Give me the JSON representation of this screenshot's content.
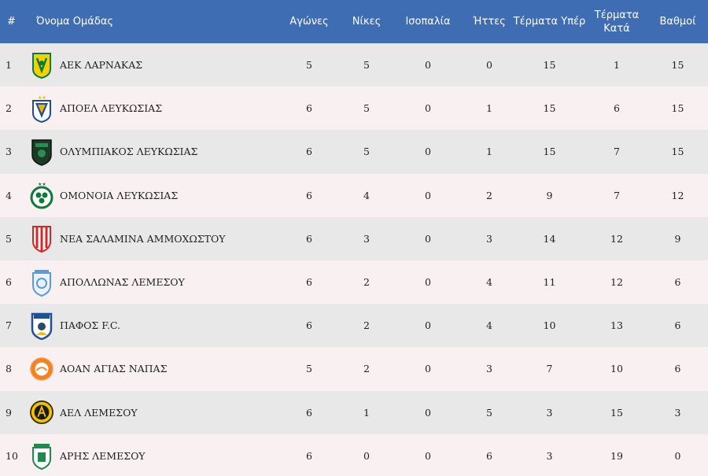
{
  "table": {
    "headers": {
      "rank": "#",
      "team": "Όνομα Ομάδας",
      "played": "Αγώνες",
      "wins": "Νίκες",
      "draws": "Ισοπαλία",
      "losses": "Ήττες",
      "goals_for": "Τέρματα Υπέρ",
      "goals_against": "Τέρματα Κατά",
      "points": "Βαθμοί"
    },
    "rows": [
      {
        "rank": "1",
        "team": "ΑΕΚ ΛΑΡΝΑΚΑΣ",
        "played": "5",
        "wins": "5",
        "draws": "0",
        "losses": "0",
        "goals_for": "15",
        "goals_against": "1",
        "points": "15",
        "logo": "aek-larnaca-logo-icon"
      },
      {
        "rank": "2",
        "team": "ΑΠΟΕΛ ΛΕΥΚΩΣΙΑΣ",
        "played": "6",
        "wins": "5",
        "draws": "0",
        "losses": "1",
        "goals_for": "15",
        "goals_against": "6",
        "points": "15",
        "logo": "apoel-logo-icon"
      },
      {
        "rank": "3",
        "team": "ΟΛΥΜΠΙΑΚΟΣ ΛΕΥΚΩΣΙΑΣ",
        "played": "6",
        "wins": "5",
        "draws": "0",
        "losses": "1",
        "goals_for": "15",
        "goals_against": "7",
        "points": "15",
        "logo": "olympiakos-nicosia-logo-icon"
      },
      {
        "rank": "4",
        "team": "ΟΜΟΝΟΙΑ ΛΕΥΚΩΣΙΑΣ",
        "played": "6",
        "wins": "4",
        "draws": "0",
        "losses": "2",
        "goals_for": "9",
        "goals_against": "7",
        "points": "12",
        "logo": "omonia-logo-icon"
      },
      {
        "rank": "5",
        "team": "ΝΕΑ ΣΑΛΑΜΙΝΑ ΑΜΜΟΧΩΣΤΟΥ",
        "played": "6",
        "wins": "3",
        "draws": "0",
        "losses": "3",
        "goals_for": "14",
        "goals_against": "12",
        "points": "9",
        "logo": "nea-salamis-logo-icon"
      },
      {
        "rank": "6",
        "team": "ΑΠΟΛΛΩΝΑΣ ΛΕΜΕΣΟΥ",
        "played": "6",
        "wins": "2",
        "draws": "0",
        "losses": "4",
        "goals_for": "11",
        "goals_against": "12",
        "points": "6",
        "logo": "apollon-logo-icon"
      },
      {
        "rank": "7",
        "team": "ΠΑΦΟΣ F.C.",
        "played": "6",
        "wins": "2",
        "draws": "0",
        "losses": "4",
        "goals_for": "10",
        "goals_against": "13",
        "points": "6",
        "logo": "pafos-logo-icon"
      },
      {
        "rank": "8",
        "team": "ΑΟΑΝ ΑΓΙΑΣ ΝΑΠΑΣ",
        "played": "5",
        "wins": "2",
        "draws": "0",
        "losses": "3",
        "goals_for": "7",
        "goals_against": "10",
        "points": "6",
        "logo": "aoan-agia-napa-logo-icon"
      },
      {
        "rank": "9",
        "team": "ΑΕΛ ΛΕΜΕΣΟΥ",
        "played": "6",
        "wins": "1",
        "draws": "0",
        "losses": "5",
        "goals_for": "3",
        "goals_against": "15",
        "points": "3",
        "logo": "ael-logo-icon"
      },
      {
        "rank": "10",
        "team": "ΑΡΗΣ ΛΕΜΕΣΟΥ",
        "played": "6",
        "wins": "0",
        "draws": "0",
        "losses": "6",
        "goals_for": "3",
        "goals_against": "19",
        "points": "0",
        "logo": "aris-logo-icon"
      }
    ]
  },
  "colors": {
    "header_bg": "#3f6db4",
    "header_text": "#ffffff",
    "row_odd": "#e8e8e8",
    "row_even": "#f9f1f1",
    "text": "#222222"
  }
}
